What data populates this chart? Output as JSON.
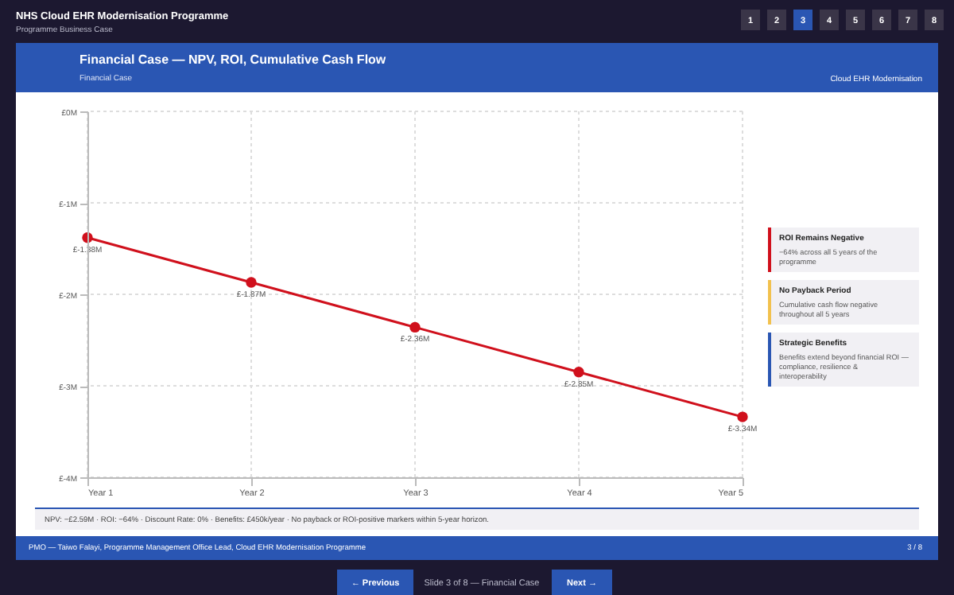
{
  "chart_data": {
    "type": "line",
    "title": "Financial Case — NPV, ROI, Cumulative Cash Flow",
    "subtitle": "Financial Case",
    "categories": [
      "Year 1",
      "Year 2",
      "Year 3",
      "Year 4",
      "Year 5"
    ],
    "series": [
      {
        "color": "#d0101c",
        "values": [
          -1.38,
          -1.87,
          -2.36,
          -2.85,
          -3.34
        ],
        "value_labels": [
          "£-1.38M",
          "£-1.87M",
          "£-2.36M",
          "£-2.85M",
          "£-3.34M"
        ]
      }
    ],
    "ylim": [
      -4,
      0
    ],
    "yticks": [
      {
        "value": -4,
        "label": "£-4M"
      },
      {
        "value": -3,
        "label": "£-3M"
      },
      {
        "value": -2,
        "label": "£-2M"
      },
      {
        "value": -1,
        "label": "£-1M"
      },
      {
        "value": 0,
        "label": "£0M"
      }
    ],
    "grid": true,
    "marker": "circle",
    "line_style": "solid",
    "annotations": [
      "NHS Cloud EHR Modernisation Programme",
      "Programme Business Case",
      "Cloud EHR Modernisation",
      "1",
      "2",
      "3",
      "4",
      "5",
      "6",
      "7",
      "8",
      "ROI Remains Negative",
      "−64% across all 5 years of the",
      "programme",
      "No Payback Period",
      "Cumulative cash flow negative",
      "throughout all 5 years",
      "Strategic Benefits",
      "Benefits extend beyond financial ROI —",
      "compliance, resilience &",
      "interoperability",
      "NPV: −£2.59M · ROI: −64% · Discount Rate: 0% · Benefits: £450k/year · No payback or ROI-positive markers within 5-year horizon.",
      "PMO — Taiwo Falayi, Programme Management Office Lead, Cloud EHR Modernisation Programme",
      "3 / 8",
      "← Previous",
      "Slide 3 of 8 — Financial Case",
      "Next →"
    ]
  }
}
